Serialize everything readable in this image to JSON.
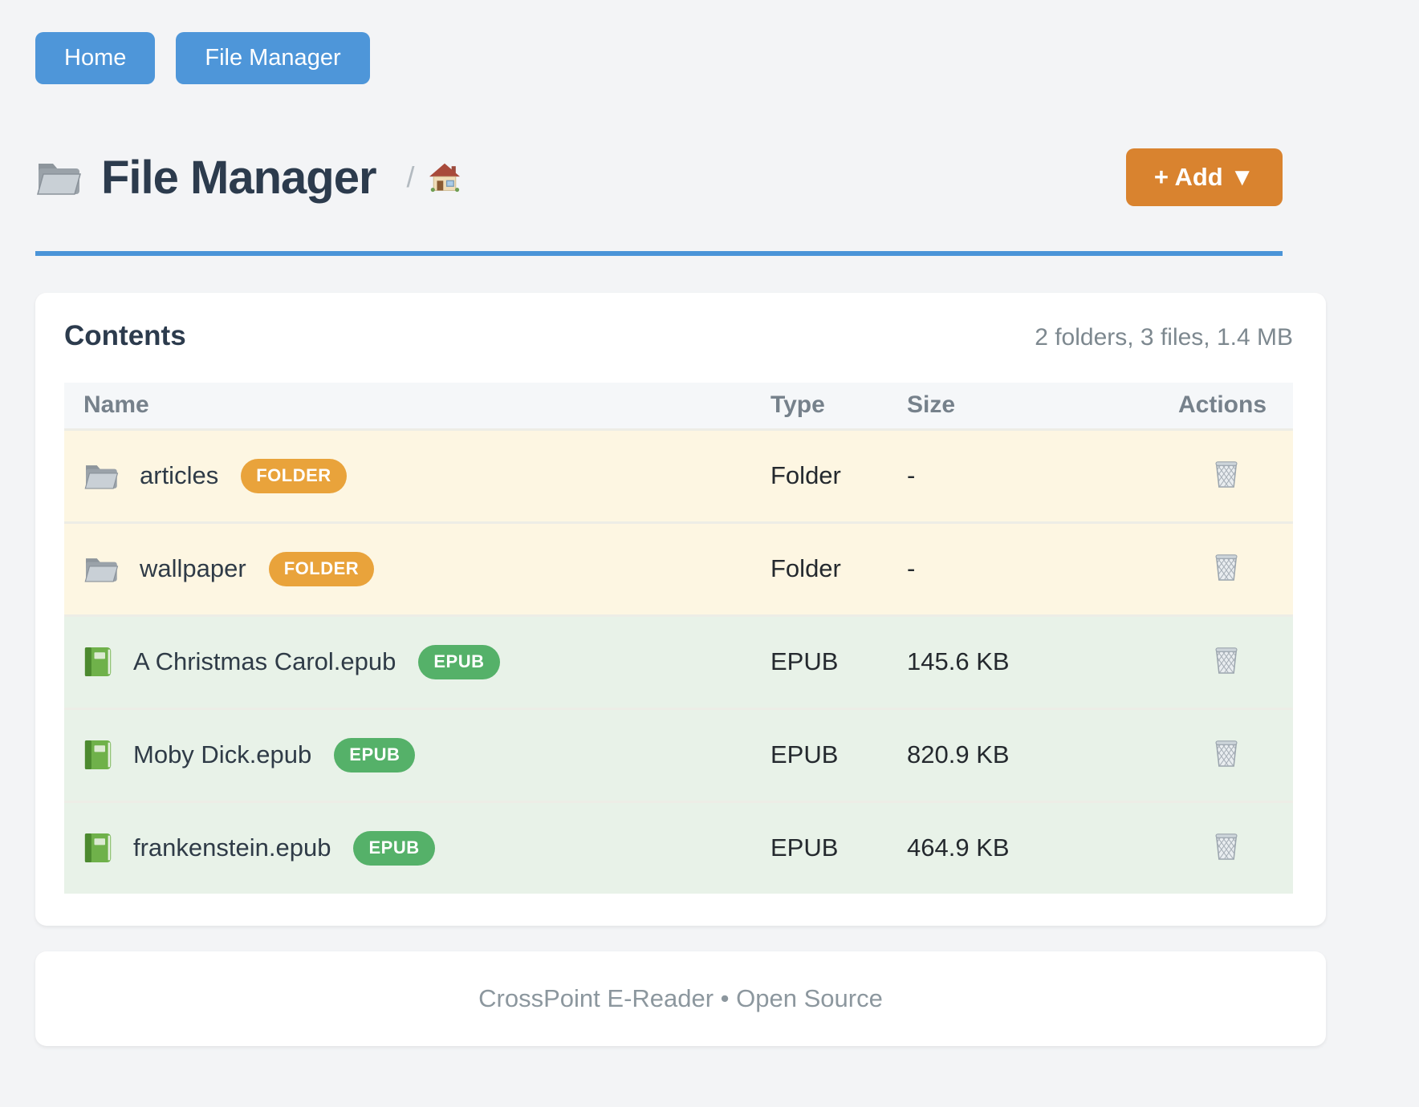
{
  "nav": {
    "home_label": "Home",
    "file_manager_label": "File Manager"
  },
  "header": {
    "title": "File Manager",
    "title_icon": "folder-icon",
    "breadcrumb_separator": "/",
    "breadcrumb_home_icon": "house-icon",
    "add_button_label": "+ Add ▼"
  },
  "contents": {
    "heading": "Contents",
    "summary": "2 folders, 3 files, 1.4 MB",
    "columns": [
      "Name",
      "Type",
      "Size",
      "Actions"
    ],
    "rows": [
      {
        "name": "articles",
        "kind": "folder",
        "icon": "folder-icon",
        "badge": "FOLDER",
        "type": "Folder",
        "size": "-",
        "action_icon": "trash-icon"
      },
      {
        "name": "wallpaper",
        "kind": "folder",
        "icon": "folder-icon",
        "badge": "FOLDER",
        "type": "Folder",
        "size": "-",
        "action_icon": "trash-icon"
      },
      {
        "name": "A Christmas Carol.epub",
        "kind": "epub",
        "icon": "book-icon",
        "badge": "EPUB",
        "type": "EPUB",
        "size": "145.6 KB",
        "action_icon": "trash-icon"
      },
      {
        "name": "Moby Dick.epub",
        "kind": "epub",
        "icon": "book-icon",
        "badge": "EPUB",
        "type": "EPUB",
        "size": "820.9 KB",
        "action_icon": "trash-icon"
      },
      {
        "name": "frankenstein.epub",
        "kind": "epub",
        "icon": "book-icon",
        "badge": "EPUB",
        "type": "EPUB",
        "size": "464.9 KB",
        "action_icon": "trash-icon"
      }
    ]
  },
  "footer": {
    "text": "CrossPoint E-Reader • Open Source"
  },
  "colors": {
    "nav_button": "#4e96d9",
    "accent_rule": "#4a94d8",
    "add_button": "#d9832f",
    "folder_badge": "#e9a33b",
    "epub_badge": "#55b169",
    "folder_row_bg": "#fdf6e2",
    "epub_row_bg": "#e8f2e8"
  }
}
